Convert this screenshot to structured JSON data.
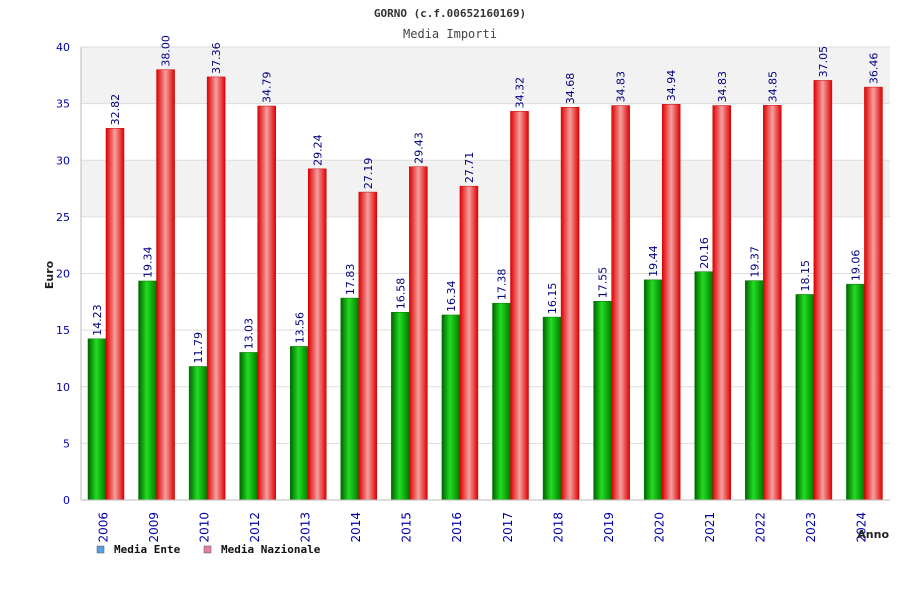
{
  "chart_data": {
    "type": "bar",
    "title": "GORNO (c.f.00652160169)",
    "subtitle": "Media Importi",
    "ylabel": "Euro",
    "xlabel": "Anno",
    "ylim": [
      0,
      40
    ],
    "yticks": [
      0,
      5,
      10,
      15,
      20,
      25,
      30,
      35,
      40
    ],
    "grid": true,
    "legend_position": "bottom-left",
    "categories": [
      "2006",
      "2009",
      "2010",
      "2012",
      "2013",
      "2014",
      "2015",
      "2016",
      "2017",
      "2018",
      "2019",
      "2020",
      "2021",
      "2022",
      "2023",
      "2024"
    ],
    "series": [
      {
        "name": "Media Ente",
        "color": "#00b000",
        "legend_color": "#5aa0e6",
        "values": [
          14.23,
          19.34,
          11.79,
          13.03,
          13.56,
          17.83,
          16.58,
          16.34,
          17.38,
          16.15,
          17.55,
          19.44,
          20.16,
          19.37,
          18.15,
          19.06
        ]
      },
      {
        "name": "Media Nazionale",
        "color": "#ee1111",
        "legend_color": "#e080a8",
        "values": [
          32.82,
          38.0,
          37.36,
          34.79,
          29.24,
          27.19,
          29.43,
          27.71,
          34.32,
          34.68,
          34.83,
          34.94,
          34.83,
          34.85,
          37.05,
          36.46
        ]
      }
    ]
  }
}
